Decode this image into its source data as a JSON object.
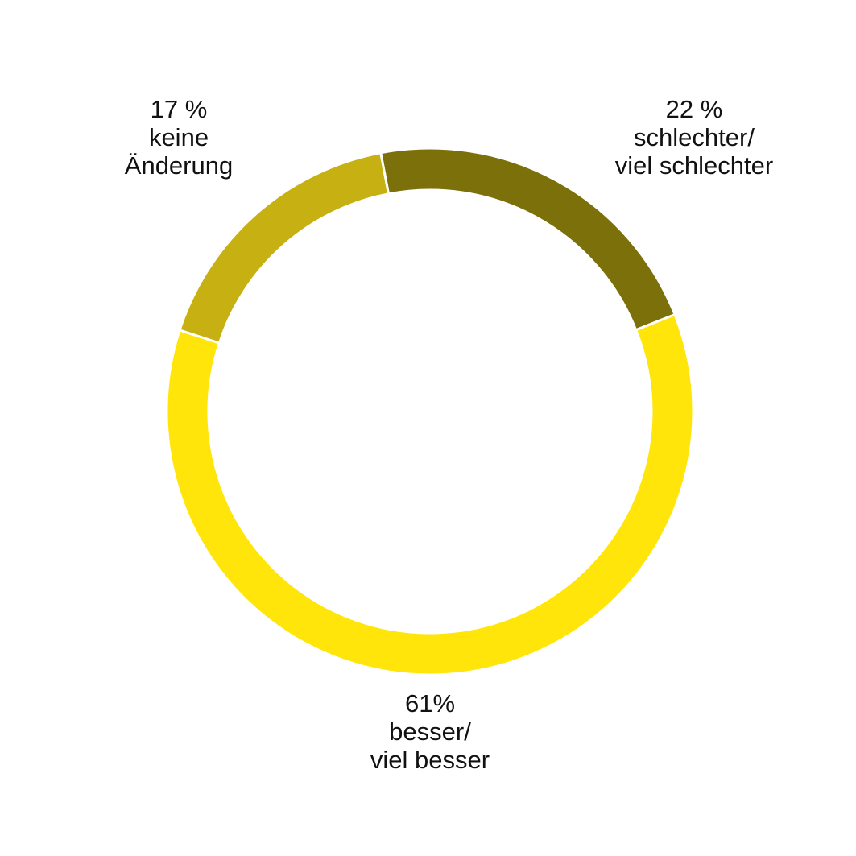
{
  "chart_data": {
    "type": "donut",
    "categories": [
      "schlechter/\nviel schlechter",
      "besser/\nviel besser",
      "keine\nÄnderung"
    ],
    "values": [
      22,
      61,
      17
    ],
    "value_labels": [
      "22 %",
      "61%",
      "17 %"
    ],
    "colors": [
      "#7c700b",
      "#ffe50a",
      "#c7b012"
    ]
  }
}
